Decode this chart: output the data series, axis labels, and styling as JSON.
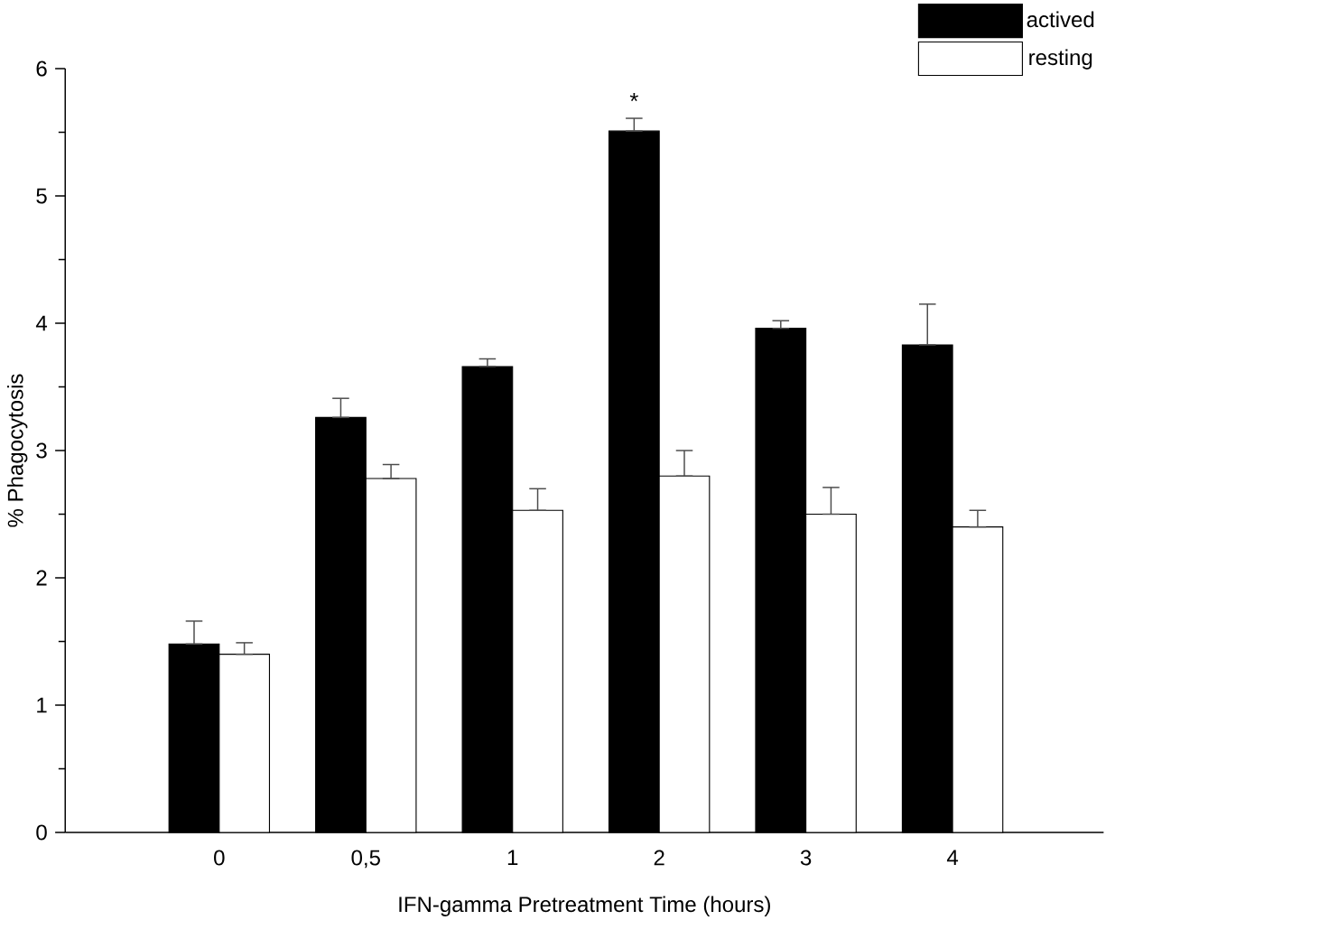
{
  "chart_data": {
    "type": "bar",
    "xlabel": "IFN-gamma Pretreatment Time (hours)",
    "ylabel": "% Phagocytosis",
    "categories": [
      "0",
      "0,5",
      "1",
      "2",
      "3",
      "4"
    ],
    "series": [
      {
        "name": "actived",
        "color": "#000000",
        "values": [
          1.48,
          3.26,
          3.66,
          5.51,
          3.96,
          3.83
        ],
        "errors": [
          [
            1.48,
            1.66
          ],
          [
            3.26,
            3.41
          ],
          [
            3.66,
            3.72
          ],
          [
            5.51,
            5.61
          ],
          [
            3.96,
            4.02
          ],
          [
            3.83,
            4.15
          ]
        ]
      },
      {
        "name": "resting",
        "color": "#ffffff",
        "values": [
          1.4,
          2.78,
          2.53,
          2.8,
          2.5,
          2.4
        ],
        "errors": [
          [
            1.4,
            1.49
          ],
          [
            2.78,
            2.89
          ],
          [
            2.53,
            2.7
          ],
          [
            2.8,
            3.0
          ],
          [
            2.5,
            2.71
          ],
          [
            2.4,
            2.53
          ]
        ]
      }
    ],
    "ylim": [
      0,
      6
    ],
    "yticks": [
      0,
      1,
      2,
      3,
      4,
      5,
      6
    ],
    "annotations": [
      "*"
    ],
    "grid": false,
    "legend": "top right"
  }
}
